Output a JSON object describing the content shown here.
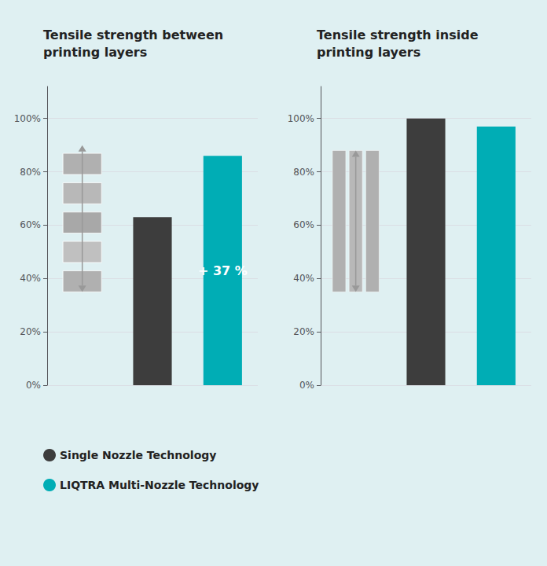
{
  "chart_data": [
    {
      "type": "bar",
      "title": "Tensile strength between\nprinting layers",
      "categories": [
        null,
        null,
        null
      ],
      "series": [
        {
          "name": "Single Nozzle Technology",
          "color": "#3d3d3d",
          "values": [
            null,
            63,
            null
          ]
        },
        {
          "name": "LIQTRA Multi-Nozzle Technology",
          "color": "#00adb5",
          "values": [
            null,
            null,
            86
          ]
        }
      ],
      "range": [
        35,
        90
      ],
      "annotation": "+ 37 %",
      "ylim": [
        0,
        112
      ],
      "yticks": [
        {
          "value": 0,
          "label": "0%"
        },
        {
          "value": 20,
          "label": "20%"
        },
        {
          "value": 40,
          "label": "40%"
        },
        {
          "value": 60,
          "label": "60%"
        },
        {
          "value": 80,
          "label": "80%"
        },
        {
          "value": 100,
          "label": "100%"
        }
      ],
      "grid": true,
      "tick_labels": "y",
      "legend": "lower left"
    },
    {
      "type": "bar",
      "title": "Tensile strength inside\nprinting layers",
      "categories": [
        null,
        null,
        null
      ],
      "series": [
        {
          "name": "Single Nozzle Technology",
          "color": "#3d3d3d",
          "values": [
            null,
            100,
            null
          ]
        },
        {
          "name": "LIQTRA Multi-Nozzle Technology",
          "color": "#00adb5",
          "values": [
            null,
            null,
            97
          ]
        }
      ],
      "range": [
        35,
        88
      ],
      "ylim": [
        0,
        112
      ],
      "yticks": [
        {
          "value": 0,
          "label": "0%"
        },
        {
          "value": 20,
          "label": "20%"
        },
        {
          "value": 40,
          "label": "40%"
        },
        {
          "value": 60,
          "label": "60%"
        },
        {
          "value": 80,
          "label": "80%"
        },
        {
          "value": 100,
          "label": "100%"
        }
      ],
      "grid": true,
      "tick_labels": "y",
      "legend": "lower left"
    }
  ]
}
